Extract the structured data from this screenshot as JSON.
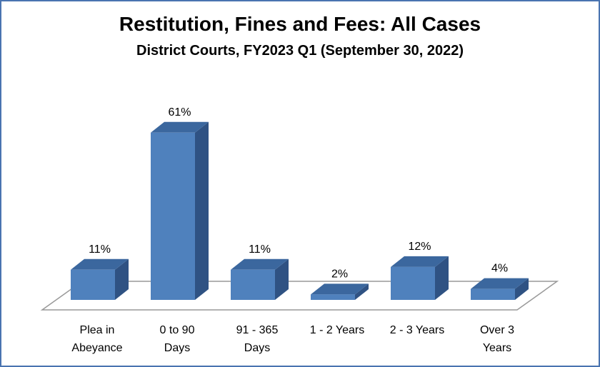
{
  "chart_data": {
    "type": "bar",
    "title": "Restitution, Fines and Fees: All Cases",
    "subtitle": "District Courts, FY2023 Q1 (September 30, 2022)",
    "categories": [
      "Plea in Abeyance",
      "0 to 90 Days",
      "91 - 365 Days",
      "1 - 2 Years",
      "2 - 3 Years",
      "Over 3 Years"
    ],
    "category_lines": [
      [
        "Plea in",
        "Abeyance"
      ],
      [
        "0 to 90",
        "Days"
      ],
      [
        "91 - 365",
        "Days"
      ],
      [
        "1 - 2 Years"
      ],
      [
        "2 - 3 Years"
      ],
      [
        "Over 3",
        "Years"
      ]
    ],
    "values": [
      11,
      61,
      11,
      2,
      12,
      4
    ],
    "value_labels": [
      "11%",
      "61%",
      "11%",
      "2%",
      "12%",
      "4%"
    ],
    "units": "%",
    "style": "3d-column",
    "bar_color": "#4f81bd",
    "bar_top_color": "#3b679e",
    "bar_side_color": "#2f5283",
    "border_color": "#4a74b0",
    "grid": false,
    "legend": "none"
  }
}
